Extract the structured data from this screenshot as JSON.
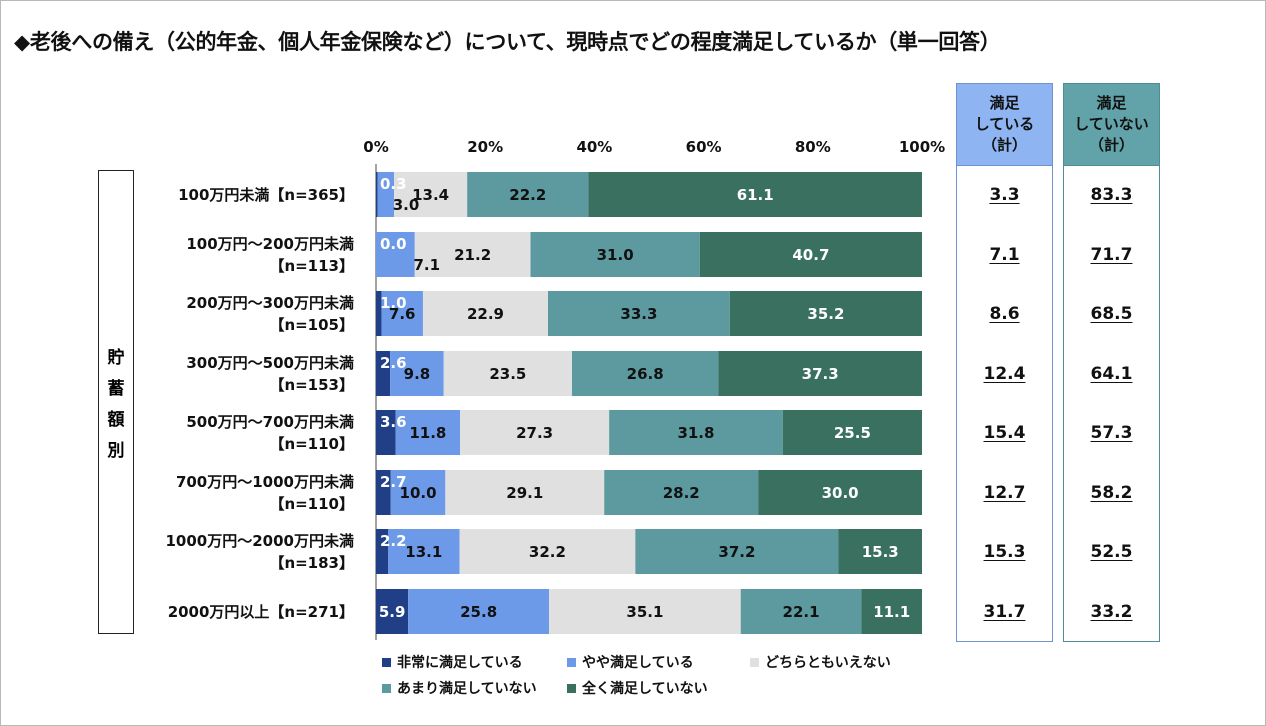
{
  "title": "◆老後への備え（公的年金、個人年金保険など）について、現時点でどの程度満足しているか（単一回答）",
  "group_label": "貯蓄額別",
  "summary_headers": {
    "satisfied": "満足\nしている\n（計）",
    "dissatisfied": "満足\nしていない\n（計）"
  },
  "colors": {
    "very_satisfied": "#203f87",
    "somewhat_satisfied": "#6d9ae8",
    "neither": "#e0e0e0",
    "not_very": "#5c9aa0",
    "not_at_all": "#3a7060"
  },
  "chart_data": {
    "type": "bar",
    "orientation": "horizontal",
    "stacked": true,
    "xlim": [
      0,
      100
    ],
    "x_ticks": [
      "0%",
      "20%",
      "40%",
      "60%",
      "80%",
      "100%"
    ],
    "categories": [
      "100万円未満【n=365】",
      "100万円～200万円未満\n【n=113】",
      "200万円～300万円未満\n【n=105】",
      "300万円～500万円未満\n【n=153】",
      "500万円～700万円未満\n【n=110】",
      "700万円～1000万円未満\n【n=110】",
      "1000万円～2000万円未満\n【n=183】",
      "2000万円以上【n=271】"
    ],
    "series": [
      {
        "name": "非常に満足している",
        "values": [
          0.3,
          0.0,
          1.0,
          2.6,
          3.6,
          2.7,
          2.2,
          5.9
        ]
      },
      {
        "name": "やや満足している",
        "values": [
          3.0,
          7.1,
          7.6,
          9.8,
          11.8,
          10.0,
          13.1,
          25.8
        ]
      },
      {
        "name": "どちらともいえない",
        "values": [
          13.4,
          21.2,
          22.9,
          23.5,
          27.3,
          29.1,
          32.2,
          35.1
        ]
      },
      {
        "name": "あまり満足していない",
        "values": [
          22.2,
          31.0,
          33.3,
          26.8,
          31.8,
          28.2,
          37.2,
          22.1
        ]
      },
      {
        "name": "全く満足していない",
        "values": [
          61.1,
          40.7,
          35.2,
          37.3,
          25.5,
          30.0,
          15.3,
          11.1
        ]
      }
    ],
    "satisfied_total": [
      "3.3",
      "7.1",
      "8.6",
      "12.4",
      "15.4",
      "12.7",
      "15.3",
      "31.7"
    ],
    "dissatisfied_total": [
      "83.3",
      "71.7",
      "68.5",
      "64.1",
      "57.3",
      "58.2",
      "52.5",
      "33.2"
    ],
    "legend_position": "bottom"
  }
}
